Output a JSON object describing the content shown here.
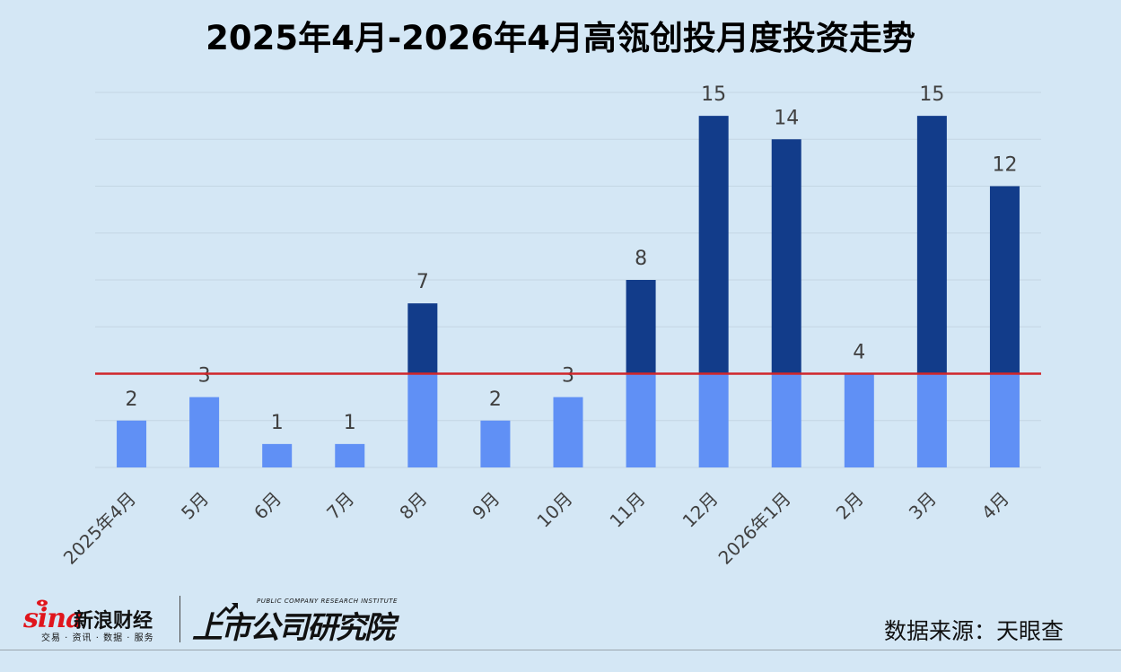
{
  "title": "2025年4月-2026年4月高瓴创投月度投资走势",
  "chart_data": {
    "type": "bar",
    "title": "2025年4月-2026年4月高瓴创投月度投资走势",
    "categories": [
      "2025年4月",
      "5月",
      "6月",
      "7月",
      "8月",
      "9月",
      "10月",
      "11月",
      "12月",
      "2026年1月",
      "2月",
      "3月",
      "4月"
    ],
    "values": [
      2,
      3,
      1,
      1,
      7,
      2,
      3,
      8,
      15,
      14,
      4,
      15,
      12
    ],
    "ylim": [
      0,
      16
    ],
    "reference_line": 4,
    "grid": true,
    "legend": "none",
    "colors": {
      "below_reference": "#6090f5",
      "above_reference": "#123c8a",
      "reference_line": "#d0262b",
      "grid": "#c4d6e3",
      "label": "#404040"
    }
  },
  "footer": {
    "sina_logo": "sina",
    "sina_name": "新浪财经",
    "sina_tagline": "交易 · 资讯 · 数据 · 服务",
    "institute_en": "PUBLIC COMPANY RESEARCH INSTITUTE",
    "institute_cn": "上市公司研究院",
    "source": "数据来源：天眼查"
  }
}
